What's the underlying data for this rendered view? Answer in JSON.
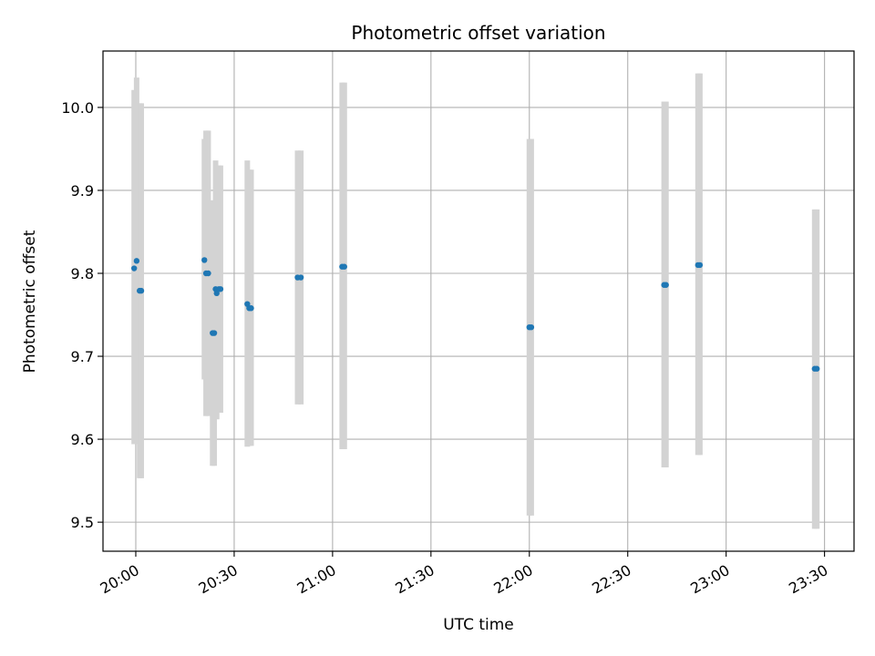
{
  "chart_data": {
    "type": "scatter",
    "title": "Photometric offset variation",
    "xlabel": "UTC time",
    "ylabel": "Photometric offset",
    "x_unit": "HH:MM",
    "xlim": [
      "19:50",
      "23:39"
    ],
    "ylim": [
      9.465,
      10.068
    ],
    "x_ticks": [
      "20:00",
      "20:30",
      "21:00",
      "21:30",
      "22:00",
      "22:30",
      "23:00",
      "23:30"
    ],
    "y_ticks": [
      9.5,
      9.6,
      9.7,
      9.8,
      9.9,
      10.0
    ],
    "grid": true,
    "colors": {
      "point": "#1f77b4",
      "errorbar": "#d3d3d3",
      "grid": "#b0b0b0"
    },
    "points": [
      {
        "x": "19:59:30",
        "y": 9.806,
        "y_low": 9.594,
        "y_high": 10.021
      },
      {
        "x": "20:00:15",
        "y": 9.815,
        "y_low": 9.594,
        "y_high": 10.036
      },
      {
        "x": "20:01:10",
        "y": 9.779,
        "y_low": 9.553,
        "y_high": 10.005
      },
      {
        "x": "20:01:40",
        "y": 9.779,
        "y_low": 9.553,
        "y_high": 10.005
      },
      {
        "x": "20:20:55",
        "y": 9.816,
        "y_low": 9.672,
        "y_high": 9.962
      },
      {
        "x": "20:21:25",
        "y": 9.8,
        "y_low": 9.628,
        "y_high": 9.972
      },
      {
        "x": "20:22:05",
        "y": 9.8,
        "y_low": 9.628,
        "y_high": 9.972
      },
      {
        "x": "20:23:25",
        "y": 9.728,
        "y_low": 9.568,
        "y_high": 9.888
      },
      {
        "x": "20:23:55",
        "y": 9.728,
        "y_low": 9.568,
        "y_high": 9.888
      },
      {
        "x": "20:24:20",
        "y": 9.781,
        "y_low": 9.626,
        "y_high": 9.936
      },
      {
        "x": "20:24:40",
        "y": 9.776,
        "y_low": 9.624,
        "y_high": 9.929
      },
      {
        "x": "20:25:20",
        "y": 9.781,
        "y_low": 9.632,
        "y_high": 9.93
      },
      {
        "x": "20:25:50",
        "y": 9.781,
        "y_low": 9.632,
        "y_high": 9.93
      },
      {
        "x": "20:34:00",
        "y": 9.763,
        "y_low": 9.591,
        "y_high": 9.936
      },
      {
        "x": "20:34:35",
        "y": 9.758,
        "y_low": 9.592,
        "y_high": 9.925
      },
      {
        "x": "20:35:10",
        "y": 9.758,
        "y_low": 9.592,
        "y_high": 9.925
      },
      {
        "x": "20:49:20",
        "y": 9.795,
        "y_low": 9.642,
        "y_high": 9.948
      },
      {
        "x": "20:50:20",
        "y": 9.795,
        "y_low": 9.642,
        "y_high": 9.948
      },
      {
        "x": "21:02:55",
        "y": 9.808,
        "y_low": 9.588,
        "y_high": 10.03
      },
      {
        "x": "21:03:35",
        "y": 9.808,
        "y_low": 9.588,
        "y_high": 10.03
      },
      {
        "x": "22:00:00",
        "y": 9.735,
        "y_low": 9.508,
        "y_high": 9.962
      },
      {
        "x": "22:00:35",
        "y": 9.735,
        "y_low": 9.508,
        "y_high": 9.962
      },
      {
        "x": "22:41:05",
        "y": 9.786,
        "y_low": 9.566,
        "y_high": 10.007
      },
      {
        "x": "22:41:40",
        "y": 9.786,
        "y_low": 9.566,
        "y_high": 10.007
      },
      {
        "x": "22:51:25",
        "y": 9.81,
        "y_low": 9.581,
        "y_high": 10.041
      },
      {
        "x": "22:52:00",
        "y": 9.81,
        "y_low": 9.581,
        "y_high": 10.041
      },
      {
        "x": "23:27:00",
        "y": 9.685,
        "y_low": 9.492,
        "y_high": 9.877
      },
      {
        "x": "23:27:40",
        "y": 9.685,
        "y_low": 9.492,
        "y_high": 9.877
      }
    ]
  }
}
